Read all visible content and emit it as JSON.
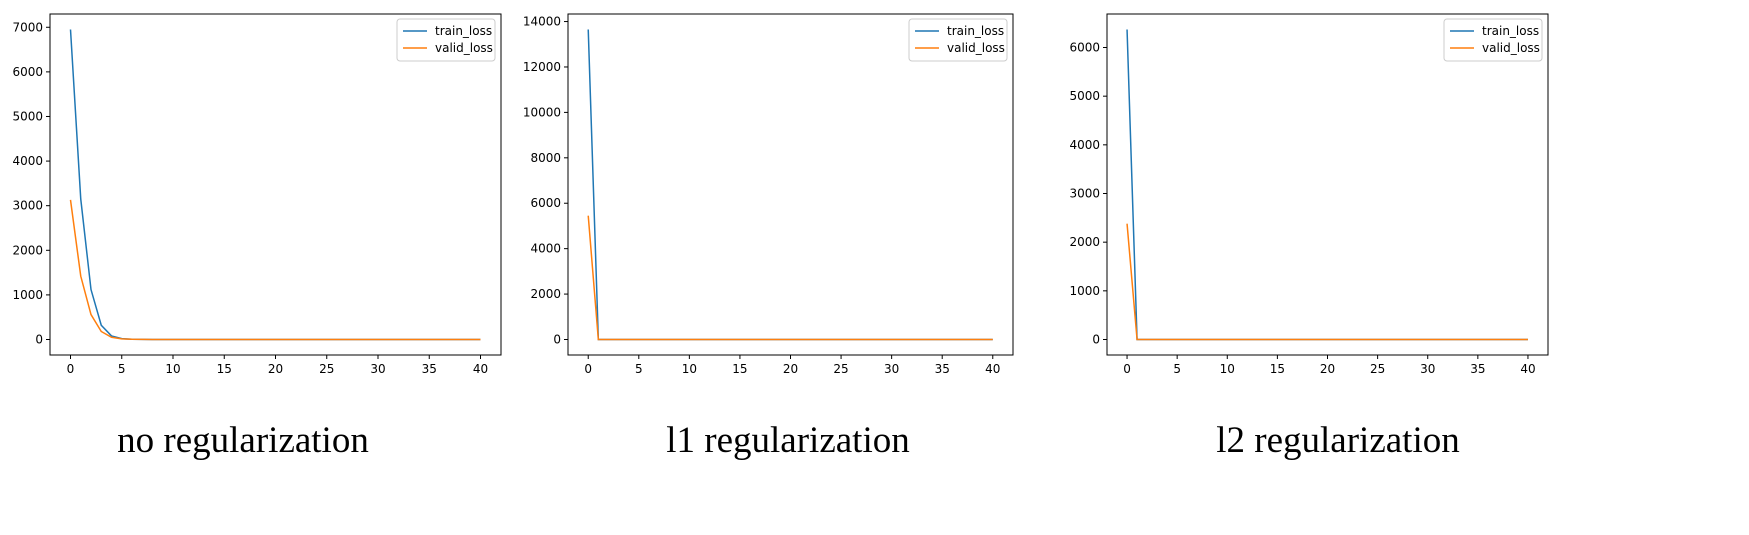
{
  "chart_data": [
    {
      "type": "line",
      "title": "no regularization",
      "x": [
        0,
        1,
        2,
        3,
        4,
        5,
        6,
        7,
        8,
        9,
        10,
        11,
        12,
        13,
        14,
        15,
        16,
        17,
        18,
        19,
        20,
        21,
        22,
        23,
        24,
        25,
        26,
        27,
        28,
        29,
        30,
        31,
        32,
        33,
        34,
        35,
        36,
        37,
        38,
        39,
        40
      ],
      "series": [
        {
          "name": "train_loss",
          "color": "#1f77b4",
          "values": [
            6950,
            3150,
            1120,
            320,
            80,
            20,
            5,
            2,
            1,
            0,
            0,
            0,
            0,
            0,
            0,
            0,
            0,
            0,
            0,
            0,
            0,
            0,
            0,
            0,
            0,
            0,
            0,
            0,
            0,
            0,
            0,
            0,
            0,
            0,
            0,
            0,
            0,
            0,
            0,
            0,
            0
          ]
        },
        {
          "name": "valid_loss",
          "color": "#ff7f0e",
          "values": [
            3130,
            1420,
            560,
            180,
            50,
            15,
            5,
            2,
            1,
            0,
            0,
            0,
            0,
            0,
            0,
            0,
            0,
            0,
            0,
            0,
            0,
            0,
            0,
            0,
            0,
            0,
            0,
            0,
            0,
            0,
            0,
            0,
            0,
            0,
            0,
            0,
            0,
            0,
            0,
            0,
            0
          ]
        }
      ],
      "xlim": [
        -2,
        42
      ],
      "xticks": [
        0,
        5,
        10,
        15,
        20,
        25,
        30,
        35,
        40
      ],
      "ylim": [
        -347.5,
        7297.5
      ],
      "yticks": [
        0,
        1000,
        2000,
        3000,
        4000,
        5000,
        6000,
        7000
      ],
      "legend": "upper right"
    },
    {
      "type": "line",
      "title": "l1 regularization",
      "x": [
        0,
        1,
        2,
        3,
        4,
        5,
        6,
        7,
        8,
        9,
        10,
        11,
        12,
        13,
        14,
        15,
        16,
        17,
        18,
        19,
        20,
        21,
        22,
        23,
        24,
        25,
        26,
        27,
        28,
        29,
        30,
        31,
        32,
        33,
        34,
        35,
        36,
        37,
        38,
        39,
        40
      ],
      "series": [
        {
          "name": "train_loss",
          "color": "#1f77b4",
          "values": [
            13650,
            0,
            0,
            0,
            0,
            0,
            0,
            0,
            0,
            0,
            0,
            0,
            0,
            0,
            0,
            0,
            0,
            0,
            0,
            0,
            0,
            0,
            0,
            0,
            0,
            0,
            0,
            0,
            0,
            0,
            0,
            0,
            0,
            0,
            0,
            0,
            0,
            0,
            0,
            0,
            0
          ]
        },
        {
          "name": "valid_loss",
          "color": "#ff7f0e",
          "values": [
            5450,
            0,
            0,
            0,
            0,
            0,
            0,
            0,
            0,
            0,
            0,
            0,
            0,
            0,
            0,
            0,
            0,
            0,
            0,
            0,
            0,
            0,
            0,
            0,
            0,
            0,
            0,
            0,
            0,
            0,
            0,
            0,
            0,
            0,
            0,
            0,
            0,
            0,
            0,
            0,
            0
          ]
        }
      ],
      "xlim": [
        -2,
        42
      ],
      "xticks": [
        0,
        5,
        10,
        15,
        20,
        25,
        30,
        35,
        40
      ],
      "ylim": [
        -682.5,
        14332.5
      ],
      "yticks": [
        0,
        2000,
        4000,
        6000,
        8000,
        10000,
        12000,
        14000
      ],
      "legend": "upper right"
    },
    {
      "type": "line",
      "title": "l2 regularization",
      "x": [
        0,
        1,
        2,
        3,
        4,
        5,
        6,
        7,
        8,
        9,
        10,
        11,
        12,
        13,
        14,
        15,
        16,
        17,
        18,
        19,
        20,
        21,
        22,
        23,
        24,
        25,
        26,
        27,
        28,
        29,
        30,
        31,
        32,
        33,
        34,
        35,
        36,
        37,
        38,
        39,
        40
      ],
      "series": [
        {
          "name": "train_loss",
          "color": "#1f77b4",
          "values": [
            6370,
            0,
            0,
            0,
            0,
            0,
            0,
            0,
            0,
            0,
            0,
            0,
            0,
            0,
            0,
            0,
            0,
            0,
            0,
            0,
            0,
            0,
            0,
            0,
            0,
            0,
            0,
            0,
            0,
            0,
            0,
            0,
            0,
            0,
            0,
            0,
            0,
            0,
            0,
            0,
            0
          ]
        },
        {
          "name": "valid_loss",
          "color": "#ff7f0e",
          "values": [
            2380,
            0,
            0,
            0,
            0,
            0,
            0,
            0,
            0,
            0,
            0,
            0,
            0,
            0,
            0,
            0,
            0,
            0,
            0,
            0,
            0,
            0,
            0,
            0,
            0,
            0,
            0,
            0,
            0,
            0,
            0,
            0,
            0,
            0,
            0,
            0,
            0,
            0,
            0,
            0,
            0
          ]
        }
      ],
      "xlim": [
        -2,
        42
      ],
      "xticks": [
        0,
        5,
        10,
        15,
        20,
        25,
        30,
        35,
        40
      ],
      "ylim": [
        -318.5,
        6688.5
      ],
      "yticks": [
        0,
        1000,
        2000,
        3000,
        4000,
        5000,
        6000
      ],
      "legend": "upper right"
    }
  ]
}
